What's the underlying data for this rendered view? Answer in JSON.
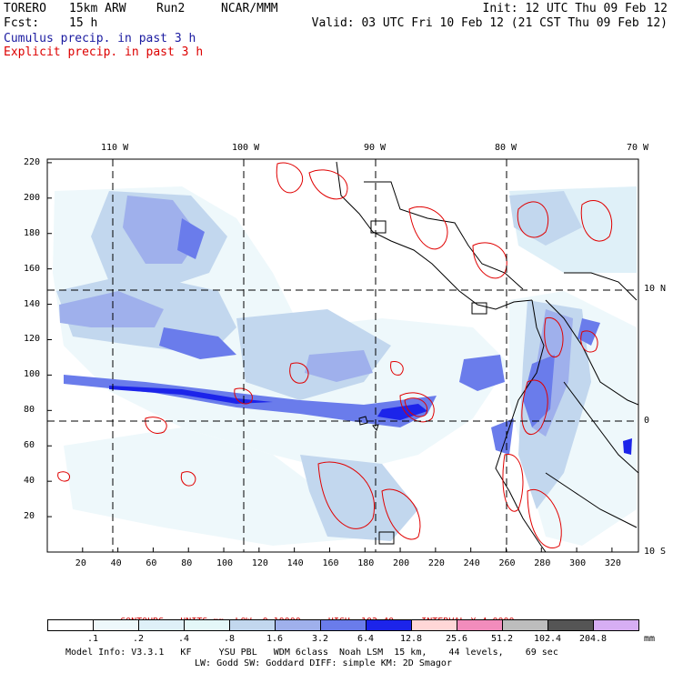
{
  "header": {
    "model": "TORERO",
    "resolution": "15km ARW",
    "run": "Run2",
    "org": "NCAR/MMM",
    "init": "Init: 12 UTC Thu 09 Feb 12",
    "fcst_label": "Fcst:",
    "fcst_value": "15 h",
    "valid": "Valid: 03 UTC Fri 10 Feb 12 (21 CST Thu 09 Feb 12)",
    "field1": "Cumulus precip. in past 3 h",
    "field2": "Explicit precip. in past 3 h",
    "field1_color": "#1a1aa0",
    "field2_color": "#dd0000"
  },
  "map": {
    "lon_labels": [
      "110 W",
      "100 W",
      "90 W",
      "80 W",
      "70 W"
    ],
    "lat_labels": [
      "10 N",
      "0",
      "10 S"
    ],
    "x_ticks": [
      "20",
      "40",
      "60",
      "80",
      "100",
      "120",
      "140",
      "160",
      "180",
      "200",
      "220",
      "240",
      "260",
      "280",
      "300",
      "320"
    ],
    "y_ticks": [
      "220",
      "200",
      "180",
      "160",
      "140",
      "120",
      "100",
      "80",
      "60",
      "40",
      "20"
    ]
  },
  "contour_info": {
    "contours": "CONTOURS:",
    "units": "UNITS=mm",
    "low": "LOW= 0.10000",
    "high": "HIGH= 102.40",
    "interval": "INTERVAL=X 4.0000",
    "color": "#cc0000"
  },
  "colorbar": {
    "labels": [
      ".1",
      ".2",
      ".4",
      ".8",
      "1.6",
      "3.2",
      "6.4",
      "12.8",
      "25.6",
      "51.2",
      "102.4",
      "204.8"
    ],
    "unit": "mm",
    "colors": [
      "#ffffff",
      "#eef8fb",
      "#dff0f8",
      "#e4f7f8",
      "#c2d7ee",
      "#9fb0ec",
      "#6a7ceb",
      "#1c24ea",
      "#ffd7d7",
      "#f28cbc",
      "#bdbdbd",
      "#555555",
      "#d7aef4"
    ]
  },
  "footer": {
    "line1": "Model Info: V3.3.1   KF     YSU PBL   WDM 6class  Noah LSM  15 km,    44 levels,    69 sec",
    "line2": "LW: Godd SW: Goddard DIFF: simple KM: 2D Smagor"
  }
}
